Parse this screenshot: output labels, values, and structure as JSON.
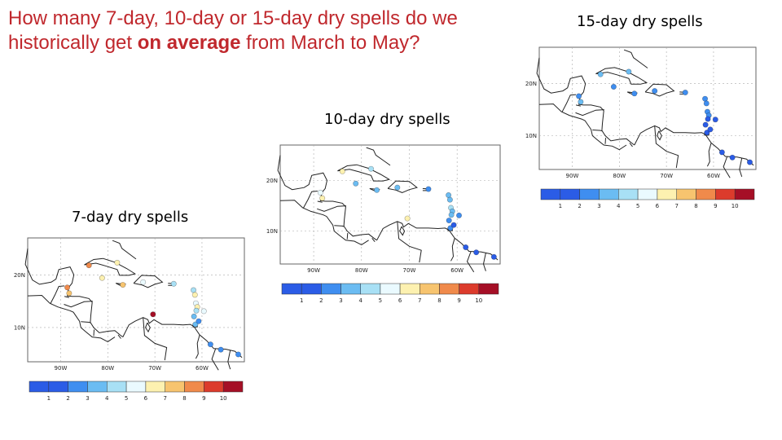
{
  "question": {
    "part1": "How many   7-day, 10-day or 15-day dry spells do we historically get ",
    "highlight": "on average",
    "part2": " from March to May?"
  },
  "panels": [
    {
      "id": "p7",
      "title": "7-day dry spells",
      "lat_labels": [
        "20N",
        "10N"
      ],
      "lon_labels": [
        "90W",
        "80W",
        "70W",
        "60W"
      ],
      "colorbar_values": [
        "1",
        "2",
        "3",
        "4",
        "5",
        "6",
        "7",
        "8",
        "9",
        "10"
      ],
      "dots": [
        {
          "lon": -88.6,
          "lat": 17.6,
          "v": 8
        },
        {
          "lon": -88.2,
          "lat": 16.5,
          "v": 7
        },
        {
          "lon": -84.0,
          "lat": 21.8,
          "v": 8
        },
        {
          "lon": -81.2,
          "lat": 19.4,
          "v": 6
        },
        {
          "lon": -78.0,
          "lat": 22.3,
          "v": 6
        },
        {
          "lon": -76.8,
          "lat": 18.1,
          "v": 7
        },
        {
          "lon": -72.5,
          "lat": 18.6,
          "v": 5
        },
        {
          "lon": -70.4,
          "lat": 12.5,
          "v": 10
        },
        {
          "lon": -66.0,
          "lat": 18.3,
          "v": 4
        },
        {
          "lon": -61.8,
          "lat": 17.1,
          "v": 4
        },
        {
          "lon": -61.5,
          "lat": 16.2,
          "v": 6
        },
        {
          "lon": -61.3,
          "lat": 14.6,
          "v": 5
        },
        {
          "lon": -61.0,
          "lat": 13.9,
          "v": 6
        },
        {
          "lon": -61.2,
          "lat": 13.2,
          "v": 4
        },
        {
          "lon": -59.6,
          "lat": 13.1,
          "v": 5
        },
        {
          "lon": -61.7,
          "lat": 12.1,
          "v": 3
        },
        {
          "lon": -61.4,
          "lat": 10.6,
          "v": 3
        },
        {
          "lon": -60.7,
          "lat": 11.2,
          "v": 2
        },
        {
          "lon": -58.2,
          "lat": 6.8,
          "v": 2
        },
        {
          "lon": -56.0,
          "lat": 5.8,
          "v": 2
        },
        {
          "lon": -52.3,
          "lat": 4.9,
          "v": 2
        }
      ]
    },
    {
      "id": "p10",
      "title": "10-day dry spells",
      "lat_labels": [
        "20N",
        "10N"
      ],
      "lon_labels": [
        "90W",
        "80W",
        "70W",
        "60W"
      ],
      "colorbar_values": [
        "1",
        "2",
        "3",
        "4",
        "5",
        "6",
        "7",
        "8",
        "9",
        "10"
      ],
      "dots": [
        {
          "lon": -88.6,
          "lat": 17.6,
          "v": 5
        },
        {
          "lon": -88.2,
          "lat": 16.5,
          "v": 6
        },
        {
          "lon": -84.0,
          "lat": 21.8,
          "v": 6
        },
        {
          "lon": -81.2,
          "lat": 19.4,
          "v": 3
        },
        {
          "lon": -78.0,
          "lat": 22.3,
          "v": 4
        },
        {
          "lon": -76.8,
          "lat": 18.1,
          "v": 3
        },
        {
          "lon": -72.5,
          "lat": 18.6,
          "v": 3
        },
        {
          "lon": -70.4,
          "lat": 12.5,
          "v": 6
        },
        {
          "lon": -66.0,
          "lat": 18.3,
          "v": 2
        },
        {
          "lon": -61.8,
          "lat": 17.1,
          "v": 3
        },
        {
          "lon": -61.5,
          "lat": 16.2,
          "v": 3
        },
        {
          "lon": -61.3,
          "lat": 14.6,
          "v": 4
        },
        {
          "lon": -61.0,
          "lat": 13.9,
          "v": 3
        },
        {
          "lon": -61.2,
          "lat": 13.2,
          "v": 3
        },
        {
          "lon": -59.6,
          "lat": 13.1,
          "v": 2
        },
        {
          "lon": -61.7,
          "lat": 12.1,
          "v": 2
        },
        {
          "lon": -61.4,
          "lat": 10.6,
          "v": 2
        },
        {
          "lon": -60.7,
          "lat": 11.2,
          "v": 1
        },
        {
          "lon": -58.2,
          "lat": 6.8,
          "v": 1
        },
        {
          "lon": -56.0,
          "lat": 5.8,
          "v": 1
        },
        {
          "lon": -52.3,
          "lat": 4.9,
          "v": 1
        }
      ]
    },
    {
      "id": "p15",
      "title": "15-day dry spells",
      "lat_labels": [
        "20N",
        "10N"
      ],
      "lon_labels": [
        "90W",
        "80W",
        "70W",
        "60W"
      ],
      "colorbar_values": [
        "1",
        "2",
        "3",
        "4",
        "5",
        "6",
        "7",
        "8",
        "9",
        "10"
      ],
      "dots": [
        {
          "lon": -88.6,
          "lat": 17.6,
          "v": 2
        },
        {
          "lon": -88.2,
          "lat": 16.5,
          "v": 3
        },
        {
          "lon": -84.0,
          "lat": 21.8,
          "v": 3
        },
        {
          "lon": -81.2,
          "lat": 19.4,
          "v": 2
        },
        {
          "lon": -78.0,
          "lat": 22.3,
          "v": 3
        },
        {
          "lon": -76.8,
          "lat": 18.1,
          "v": 2
        },
        {
          "lon": -72.5,
          "lat": 18.6,
          "v": 2
        },
        {
          "lon": -66.0,
          "lat": 18.3,
          "v": 2
        },
        {
          "lon": -61.8,
          "lat": 17.1,
          "v": 2
        },
        {
          "lon": -61.5,
          "lat": 16.2,
          "v": 2
        },
        {
          "lon": -61.3,
          "lat": 14.6,
          "v": 2
        },
        {
          "lon": -61.0,
          "lat": 13.9,
          "v": 2
        },
        {
          "lon": -61.2,
          "lat": 13.2,
          "v": 1
        },
        {
          "lon": -59.6,
          "lat": 13.1,
          "v": 1
        },
        {
          "lon": -61.7,
          "lat": 12.1,
          "v": 1
        },
        {
          "lon": -61.4,
          "lat": 10.6,
          "v": 1
        },
        {
          "lon": -60.7,
          "lat": 11.2,
          "v": 1
        },
        {
          "lon": -58.2,
          "lat": 6.8,
          "v": 1
        },
        {
          "lon": -56.0,
          "lat": 5.8,
          "v": 1
        },
        {
          "lon": -52.3,
          "lat": 4.9,
          "v": 1
        }
      ]
    }
  ],
  "colors": {
    "question": "#c0282d",
    "scale": [
      "#2b5ce6",
      "#3f8ef0",
      "#6bbcf2",
      "#a8e0f5",
      "#eafaff",
      "#fdf1b0",
      "#f7c46f",
      "#f08a4b",
      "#dc3b2c",
      "#a50f26"
    ]
  }
}
